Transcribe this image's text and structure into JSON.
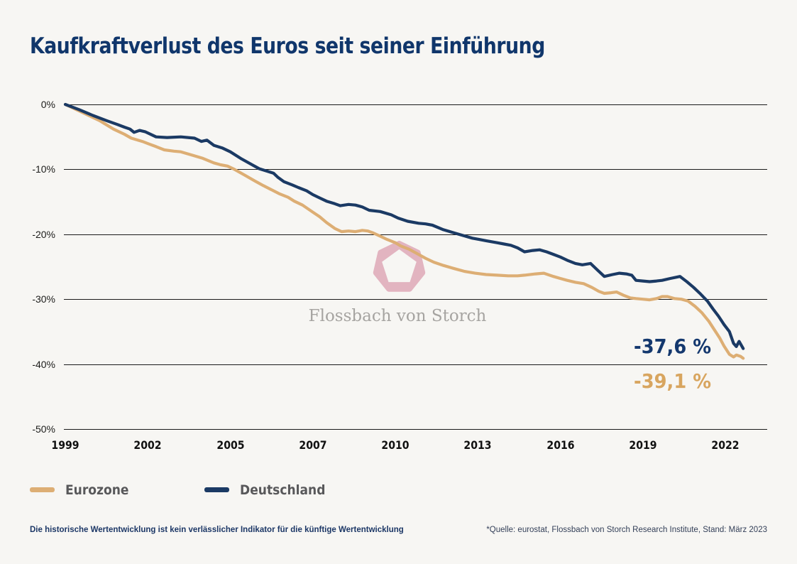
{
  "title": "Kaufkraftverlust des Euros seit seiner Einführung",
  "colors": {
    "background": "#f7f6f3",
    "brand_navy": "#10366B",
    "eurozone_line": "#DDAE74",
    "deutschland_line": "#1B3A64",
    "gridline": "#1a1a1a",
    "watermark_pink": "#DFA9B8",
    "watermark_text_gray": "#a6a4a1",
    "legend_text_gray": "#58585A"
  },
  "watermark": {
    "text": "Flossbach von Storch",
    "icon": "fvs-heptagon-pentagon-logo"
  },
  "chart_data": {
    "type": "line",
    "title": "Kaufkraftverlust des Euros seit seiner Einführung",
    "xlabel": "",
    "ylabel": "",
    "grid": "horizontal",
    "legend_position": "bottom-left",
    "x_tick_labels": [
      "1999",
      "2002",
      "2005",
      "2007",
      "2010",
      "2013",
      "2016",
      "2019",
      "2022"
    ],
    "x_tick_years": [
      1999,
      2002,
      2005,
      2007,
      2010,
      2013,
      2016,
      2019,
      2022
    ],
    "y_tick_labels": [
      "0%",
      "-10%",
      "-20%",
      "-30%",
      "-40%",
      "-50%"
    ],
    "y_tick_values": [
      0,
      -10,
      -20,
      -30,
      -40,
      -50
    ],
    "ylim": [
      -50,
      0
    ],
    "series": [
      {
        "name": "Eurozone",
        "color": "#DDAE74",
        "end_label": "-39,1 %",
        "final_value_pct": -39.1,
        "points": [
          [
            1999.0,
            0
          ],
          [
            1999.5,
            -1.0
          ],
          [
            2000.0,
            -2.0
          ],
          [
            2000.25,
            -2.5
          ],
          [
            2000.75,
            -3.8
          ],
          [
            2001.15,
            -4.6
          ],
          [
            2001.4,
            -5.2
          ],
          [
            2001.8,
            -5.7
          ],
          [
            2002.05,
            -6.1
          ],
          [
            2002.3,
            -6.5
          ],
          [
            2002.6,
            -7.0
          ],
          [
            2002.95,
            -7.2
          ],
          [
            2003.2,
            -7.3
          ],
          [
            2003.6,
            -7.8
          ],
          [
            2004.0,
            -8.3
          ],
          [
            2004.4,
            -9.0
          ],
          [
            2004.65,
            -9.3
          ],
          [
            2004.9,
            -9.5
          ],
          [
            2005.1,
            -10.0
          ],
          [
            2005.35,
            -10.9
          ],
          [
            2005.6,
            -11.8
          ],
          [
            2005.8,
            -12.5
          ],
          [
            2006.05,
            -13.3
          ],
          [
            2006.2,
            -13.8
          ],
          [
            2006.4,
            -14.3
          ],
          [
            2006.55,
            -14.9
          ],
          [
            2006.75,
            -15.5
          ],
          [
            2007.0,
            -16.6
          ],
          [
            2007.25,
            -17.3
          ],
          [
            2007.5,
            -18.2
          ],
          [
            2007.8,
            -19.1
          ],
          [
            2008.05,
            -19.6
          ],
          [
            2008.3,
            -19.5
          ],
          [
            2008.55,
            -19.6
          ],
          [
            2008.8,
            -19.4
          ],
          [
            2009.0,
            -19.5
          ],
          [
            2009.2,
            -19.8
          ],
          [
            2009.45,
            -20.3
          ],
          [
            2009.7,
            -20.8
          ],
          [
            2010.0,
            -21.3
          ],
          [
            2010.2,
            -21.8
          ],
          [
            2010.5,
            -22.3
          ],
          [
            2010.8,
            -23.0
          ],
          [
            2011.1,
            -23.7
          ],
          [
            2011.4,
            -24.3
          ],
          [
            2011.75,
            -24.8
          ],
          [
            2012.15,
            -25.3
          ],
          [
            2012.5,
            -25.7
          ],
          [
            2012.9,
            -26.0
          ],
          [
            2013.3,
            -26.2
          ],
          [
            2013.7,
            -26.3
          ],
          [
            2014.1,
            -26.4
          ],
          [
            2014.45,
            -26.4
          ],
          [
            2014.7,
            -26.3
          ],
          [
            2015.1,
            -26.1
          ],
          [
            2015.4,
            -26.0
          ],
          [
            2015.75,
            -26.5
          ],
          [
            2016.0,
            -26.8
          ],
          [
            2016.25,
            -27.1
          ],
          [
            2016.55,
            -27.4
          ],
          [
            2016.85,
            -27.6
          ],
          [
            2017.15,
            -28.2
          ],
          [
            2017.4,
            -28.8
          ],
          [
            2017.6,
            -29.1
          ],
          [
            2017.85,
            -29.0
          ],
          [
            2018.05,
            -28.9
          ],
          [
            2018.3,
            -29.4
          ],
          [
            2018.55,
            -29.8
          ],
          [
            2018.75,
            -29.9
          ],
          [
            2019.0,
            -30.0
          ],
          [
            2019.25,
            -30.1
          ],
          [
            2019.5,
            -29.9
          ],
          [
            2019.7,
            -29.6
          ],
          [
            2019.9,
            -29.6
          ],
          [
            2020.15,
            -29.9
          ],
          [
            2020.4,
            -30.0
          ],
          [
            2020.65,
            -30.3
          ],
          [
            2020.9,
            -31.1
          ],
          [
            2021.15,
            -32.1
          ],
          [
            2021.4,
            -33.4
          ],
          [
            2021.6,
            -34.7
          ],
          [
            2021.8,
            -36.0
          ],
          [
            2021.95,
            -37.2
          ],
          [
            2022.15,
            -38.5
          ],
          [
            2022.3,
            -38.9
          ],
          [
            2022.4,
            -38.6
          ],
          [
            2022.55,
            -38.8
          ],
          [
            2022.65,
            -39.1
          ]
        ]
      },
      {
        "name": "Deutschland",
        "color": "#1B3A64",
        "end_label": "-37,6 %",
        "final_value_pct": -37.6,
        "points": [
          [
            1999.0,
            0
          ],
          [
            1999.5,
            -0.8
          ],
          [
            2000.0,
            -1.7
          ],
          [
            2000.5,
            -2.5
          ],
          [
            2000.9,
            -3.1
          ],
          [
            2001.15,
            -3.5
          ],
          [
            2001.35,
            -3.8
          ],
          [
            2001.5,
            -4.3
          ],
          [
            2001.7,
            -4.0
          ],
          [
            2001.9,
            -4.2
          ],
          [
            2002.3,
            -5.0
          ],
          [
            2002.7,
            -5.1
          ],
          [
            2003.2,
            -5.0
          ],
          [
            2003.7,
            -5.2
          ],
          [
            2003.95,
            -5.7
          ],
          [
            2004.15,
            -5.5
          ],
          [
            2004.4,
            -6.3
          ],
          [
            2004.7,
            -6.7
          ],
          [
            2005.0,
            -7.3
          ],
          [
            2005.25,
            -8.3
          ],
          [
            2005.5,
            -9.2
          ],
          [
            2005.7,
            -9.9
          ],
          [
            2005.9,
            -10.3
          ],
          [
            2006.05,
            -10.6
          ],
          [
            2006.15,
            -11.2
          ],
          [
            2006.3,
            -11.9
          ],
          [
            2006.5,
            -12.4
          ],
          [
            2006.65,
            -12.8
          ],
          [
            2006.85,
            -13.3
          ],
          [
            2007.0,
            -13.9
          ],
          [
            2007.25,
            -14.4
          ],
          [
            2007.5,
            -14.9
          ],
          [
            2007.8,
            -15.3
          ],
          [
            2008.0,
            -15.6
          ],
          [
            2008.3,
            -15.4
          ],
          [
            2008.55,
            -15.5
          ],
          [
            2008.8,
            -15.8
          ],
          [
            2009.05,
            -16.3
          ],
          [
            2009.45,
            -16.5
          ],
          [
            2009.85,
            -17.0
          ],
          [
            2010.1,
            -17.5
          ],
          [
            2010.45,
            -18.0
          ],
          [
            2010.85,
            -18.3
          ],
          [
            2011.1,
            -18.4
          ],
          [
            2011.35,
            -18.6
          ],
          [
            2011.75,
            -19.3
          ],
          [
            2012.15,
            -19.8
          ],
          [
            2012.55,
            -20.3
          ],
          [
            2012.8,
            -20.6
          ],
          [
            2013.05,
            -20.8
          ],
          [
            2013.3,
            -21.0
          ],
          [
            2013.7,
            -21.3
          ],
          [
            2013.95,
            -21.5
          ],
          [
            2014.2,
            -21.7
          ],
          [
            2014.45,
            -22.1
          ],
          [
            2014.7,
            -22.7
          ],
          [
            2015.0,
            -22.5
          ],
          [
            2015.25,
            -22.4
          ],
          [
            2015.5,
            -22.7
          ],
          [
            2015.75,
            -23.1
          ],
          [
            2016.0,
            -23.5
          ],
          [
            2016.25,
            -24.0
          ],
          [
            2016.55,
            -24.5
          ],
          [
            2016.8,
            -24.7
          ],
          [
            2017.1,
            -24.5
          ],
          [
            2017.35,
            -25.5
          ],
          [
            2017.6,
            -26.5
          ],
          [
            2017.9,
            -26.2
          ],
          [
            2018.15,
            -26.0
          ],
          [
            2018.4,
            -26.1
          ],
          [
            2018.6,
            -26.3
          ],
          [
            2018.75,
            -27.1
          ],
          [
            2019.0,
            -27.2
          ],
          [
            2019.25,
            -27.3
          ],
          [
            2019.5,
            -27.2
          ],
          [
            2019.7,
            -27.1
          ],
          [
            2020.0,
            -26.8
          ],
          [
            2020.35,
            -26.5
          ],
          [
            2020.6,
            -27.3
          ],
          [
            2020.85,
            -28.2
          ],
          [
            2021.1,
            -29.2
          ],
          [
            2021.35,
            -30.3
          ],
          [
            2021.55,
            -31.5
          ],
          [
            2021.75,
            -32.6
          ],
          [
            2021.95,
            -33.9
          ],
          [
            2022.15,
            -35.0
          ],
          [
            2022.3,
            -36.8
          ],
          [
            2022.4,
            -37.3
          ],
          [
            2022.5,
            -36.5
          ],
          [
            2022.65,
            -37.6
          ]
        ]
      }
    ]
  },
  "legend": {
    "items": [
      {
        "label": "Eurozone",
        "color": "#DDAE74"
      },
      {
        "label": "Deutschland",
        "color": "#1B3A64"
      }
    ]
  },
  "footer": {
    "disclaimer": "Die historische Wertentwicklung ist kein verlässlicher Indikator für die künftige Wertentwicklung",
    "source": "*Quelle: eurostat, Flossbach von Storch Research Institute, Stand: März 2023"
  }
}
